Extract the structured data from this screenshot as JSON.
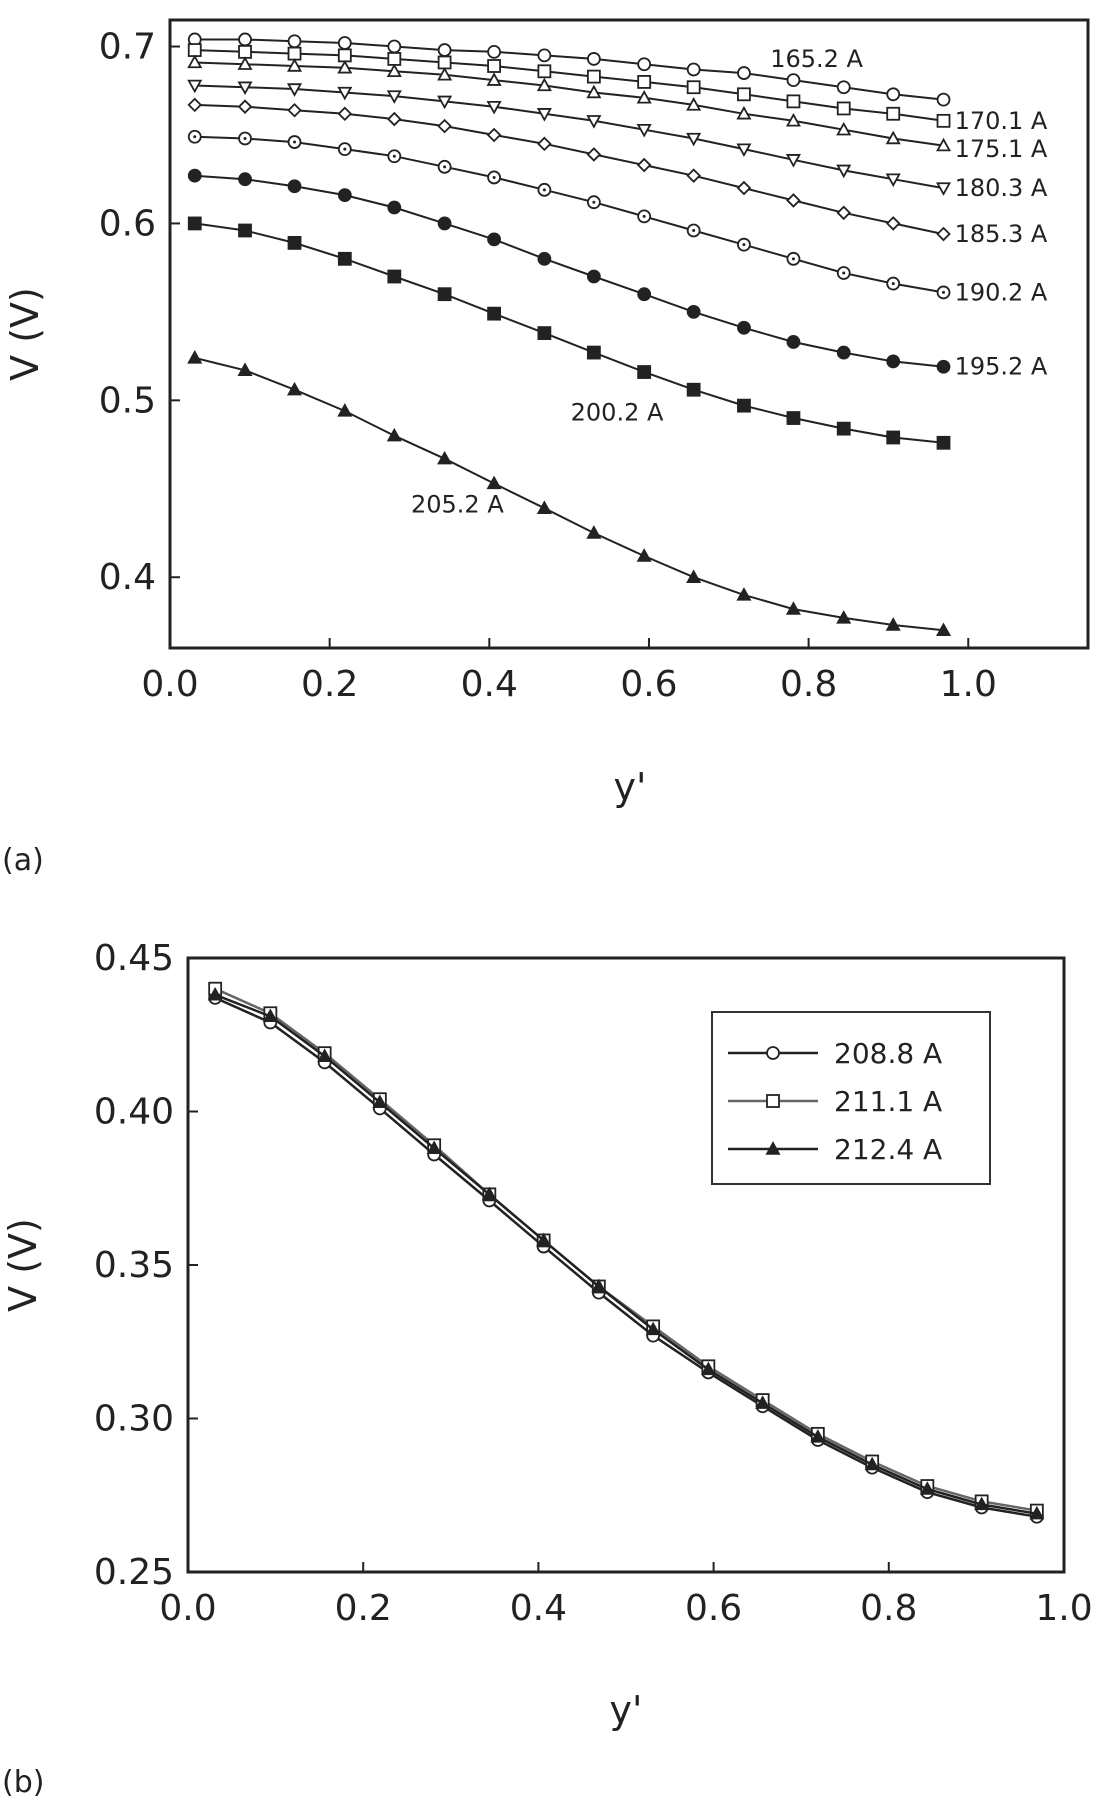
{
  "chart_data": [
    {
      "type": "line",
      "panel_label": "(a)",
      "xlabel": "y'",
      "ylabel": "V (V)",
      "xlim": [
        0.0,
        1.15
      ],
      "ylim": [
        0.36,
        0.715
      ],
      "xticks": [
        "0.0",
        "0.2",
        "0.4",
        "0.6",
        "0.8",
        "1.0"
      ],
      "yticks": [
        "0.4",
        "0.5",
        "0.6",
        "0.7"
      ],
      "grid": false,
      "x": [
        0.031,
        0.094,
        0.156,
        0.219,
        0.281,
        0.344,
        0.406,
        0.469,
        0.531,
        0.594,
        0.656,
        0.719,
        0.781,
        0.844,
        0.906,
        0.969
      ],
      "series": [
        {
          "name": "165.2 A",
          "marker": "circle-open",
          "values": [
            0.704,
            0.704,
            0.703,
            0.702,
            0.7,
            0.698,
            0.697,
            0.695,
            0.693,
            0.69,
            0.687,
            0.685,
            0.681,
            0.677,
            0.673,
            0.67
          ]
        },
        {
          "name": "170.1 A",
          "marker": "square-open",
          "values": [
            0.698,
            0.697,
            0.696,
            0.695,
            0.693,
            0.691,
            0.689,
            0.686,
            0.683,
            0.68,
            0.677,
            0.673,
            0.669,
            0.665,
            0.662,
            0.658
          ]
        },
        {
          "name": "175.1 A",
          "marker": "triangle-up-open",
          "values": [
            0.691,
            0.69,
            0.689,
            0.688,
            0.686,
            0.684,
            0.681,
            0.678,
            0.674,
            0.671,
            0.667,
            0.662,
            0.658,
            0.653,
            0.648,
            0.644
          ]
        },
        {
          "name": "180.3 A",
          "marker": "triangle-down-open",
          "values": [
            0.678,
            0.677,
            0.676,
            0.674,
            0.672,
            0.669,
            0.666,
            0.662,
            0.658,
            0.653,
            0.648,
            0.642,
            0.636,
            0.63,
            0.625,
            0.62
          ]
        },
        {
          "name": "185.3 A",
          "marker": "diamond-open",
          "values": [
            0.667,
            0.666,
            0.664,
            0.662,
            0.659,
            0.655,
            0.65,
            0.645,
            0.639,
            0.633,
            0.627,
            0.62,
            0.613,
            0.606,
            0.6,
            0.594
          ]
        },
        {
          "name": "190.2 A",
          "marker": "hexagon-open",
          "values": [
            0.649,
            0.648,
            0.646,
            0.642,
            0.638,
            0.632,
            0.626,
            0.619,
            0.612,
            0.604,
            0.596,
            0.588,
            0.58,
            0.572,
            0.566,
            0.561
          ]
        },
        {
          "name": "195.2 A",
          "marker": "circle-filled",
          "values": [
            0.627,
            0.625,
            0.621,
            0.616,
            0.609,
            0.6,
            0.591,
            0.58,
            0.57,
            0.56,
            0.55,
            0.541,
            0.533,
            0.527,
            0.522,
            0.519
          ]
        },
        {
          "name": "200.2 A",
          "marker": "square-filled",
          "values": [
            0.6,
            0.596,
            0.589,
            0.58,
            0.57,
            0.56,
            0.549,
            0.538,
            0.527,
            0.516,
            0.506,
            0.497,
            0.49,
            0.484,
            0.479,
            0.476
          ]
        },
        {
          "name": "205.2 A",
          "marker": "triangle-filled",
          "values": [
            0.524,
            0.517,
            0.506,
            0.494,
            0.48,
            0.467,
            0.453,
            0.439,
            0.425,
            0.412,
            0.4,
            0.39,
            0.382,
            0.377,
            0.373,
            0.37
          ]
        }
      ],
      "series_labels": [
        {
          "text": "165.2 A",
          "at": [
            0.81,
            0.693
          ]
        },
        {
          "text": "170.1 A",
          "at": [
            1.041,
            0.658
          ]
        },
        {
          "text": "175.1 A",
          "at": [
            1.041,
            0.642
          ]
        },
        {
          "text": "180.3 A",
          "at": [
            1.041,
            0.62
          ]
        },
        {
          "text": "185.3 A",
          "at": [
            1.041,
            0.594
          ]
        },
        {
          "text": "190.2 A",
          "at": [
            1.041,
            0.561
          ]
        },
        {
          "text": "195.2 A",
          "at": [
            1.041,
            0.519
          ]
        },
        {
          "text": "200.2 A",
          "at": [
            0.56,
            0.493
          ]
        },
        {
          "text": "205.2 A",
          "at": [
            0.36,
            0.441
          ]
        }
      ]
    },
    {
      "type": "line",
      "panel_label": "(b)",
      "xlabel": "y'",
      "ylabel": "V (V)",
      "xlim": [
        0.0,
        1.0
      ],
      "ylim": [
        0.25,
        0.45
      ],
      "xticks": [
        "0.0",
        "0.2",
        "0.4",
        "0.6",
        "0.8",
        "1.0"
      ],
      "yticks": [
        "0.25",
        "0.30",
        "0.35",
        "0.40",
        "0.45"
      ],
      "grid": false,
      "legend": "top-right",
      "x": [
        0.031,
        0.094,
        0.156,
        0.219,
        0.281,
        0.344,
        0.406,
        0.469,
        0.531,
        0.594,
        0.656,
        0.719,
        0.781,
        0.844,
        0.906,
        0.969
      ],
      "series": [
        {
          "name": "208.8 A",
          "marker": "circle-open",
          "values": [
            0.437,
            0.429,
            0.416,
            0.401,
            0.386,
            0.371,
            0.356,
            0.341,
            0.327,
            0.315,
            0.304,
            0.293,
            0.284,
            0.276,
            0.271,
            0.268
          ]
        },
        {
          "name": "211.1 A",
          "marker": "square-open",
          "values": [
            0.44,
            0.432,
            0.419,
            0.404,
            0.389,
            0.373,
            0.358,
            0.343,
            0.33,
            0.317,
            0.306,
            0.295,
            0.286,
            0.278,
            0.273,
            0.27
          ]
        },
        {
          "name": "212.4 A",
          "marker": "triangle-filled",
          "values": [
            0.438,
            0.431,
            0.418,
            0.403,
            0.388,
            0.373,
            0.358,
            0.343,
            0.329,
            0.316,
            0.305,
            0.294,
            0.285,
            0.277,
            0.272,
            0.269
          ]
        }
      ]
    }
  ]
}
